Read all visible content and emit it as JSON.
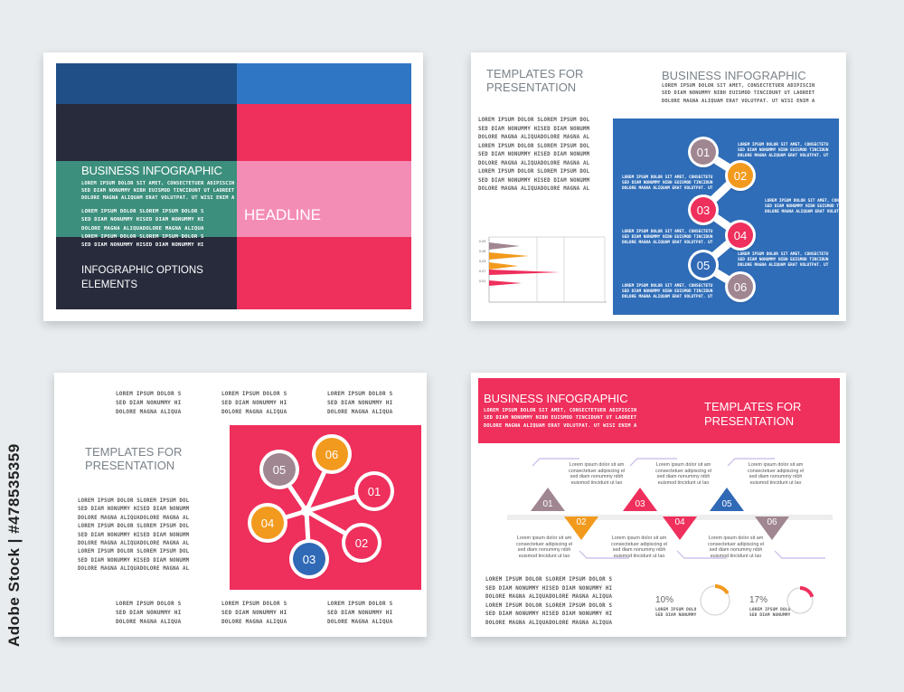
{
  "watermark": "Adobe Stock | #478535359",
  "colors": {
    "navy": "#1f4f86",
    "blue": "#2f77c4",
    "dark": "#272b3c",
    "teal": "#3d8f7d",
    "red": "#ef2f5c",
    "pink": "#f48db6",
    "orange": "#f29a1d",
    "mauve": "#a08691",
    "blueNode": "#3069b6"
  },
  "slide1": {
    "title": "BUSINESS INFOGRAPHIC",
    "body": "LOREM IPSUM DOLOR SIT AMET, CONSECTETUER ADIPISCIN\nSED DIAM NONUMMY NIBH EUISMOD TINCIDUNT UT LAOREET\nDOLORE MAGNA ALIQUAM ERAT VOLUTPAT. UT WISI ENIM A",
    "col": "LOREM IPSUM DOLOR SLOREM IPSUM DOLOR S\nSED DIAM NONUMMY HISED DIAM NONUMMY HI\nDOLORE MAGNA ALIQUADOLORE MAGNA ALIQUA\nLOREM IPSUM DOLOR SLOREM IPSUM DOLOR S\nSED DIAM NONUMMY HISED DIAM NONUMMY HI",
    "headline": "HEADLINE",
    "options": "INFOGRAPHIC OPTIONS\nELEMENTS"
  },
  "slide2": {
    "left_title": "TEMPLATES FOR\nPRESENTATION",
    "right_title": "BUSINESS INFOGRAPHIC",
    "right_body": "LOREM IPSUM DOLOR SIT AMET, CONSECTETUER ADIPISCIN\nSED DIAM NONUMMY NIBH EUISMOD TINCIDUNT UT LAOREET\nDOLORE MAGNA ALIQUAM ERAT VOLUTPAT. UT WISI ENIM A",
    "left_col": "LOREM IPSUM DOLOR SLOREM IPSUM DOL\nSED DIAM NONUMMY HISED DIAM NONUMM\nDOLORE MAGNA ALIQUADOLORE MAGNA AL\nLOREM IPSUM DOLOR SLOREM IPSUM DOL\nSED DIAM NONUMMY HISED DIAM NONUMM\nDOLORE MAGNA ALIQUADOLORE MAGNA AL\nLOREM IPSUM DOLOR SLOREM IPSUM DOL\nSED DIAM NONUMMY HISED DIAM NONUMM\nDOLORE MAGNA ALIQUADOLORE MAGNA AL",
    "nodes": [
      "01",
      "02",
      "03",
      "04",
      "05",
      "06"
    ],
    "side_text": "LOREM IPSUM DOLOR SIT AMET, CONSECTETU\nSED DIAM NONUMMY NIBH EUISMOD TINCIDUN\nDOLORE MAGNA ALIQUAM ERAT VOLUTPAT. UT",
    "mini_chart_ticks": [
      "0.09",
      "0.08",
      "0.03",
      "0.07",
      "0.01"
    ]
  },
  "slide3": {
    "title": "TEMPLATES FOR\nPRESENTATION",
    "top_col": "LOREM IPSUM DOLOR S\nSED DIAM NONUMMY HI\nDOLORE MAGNA ALIQUA",
    "left_col": "LOREM IPSUM DOLOR SLOREM IPSUM DOL\nSED DIAM NONUMMY HISED DIAM NONUMM\nDOLORE MAGNA ALIQUADOLORE MAGNA AL\nLOREM IPSUM DOLOR SLOREM IPSUM DOL\nSED DIAM NONUMMY HISED DIAM NONUMM\nDOLORE MAGNA ALIQUADOLORE MAGNA AL\nLOREM IPSUM DOLOR SLOREM IPSUM DOL\nSED DIAM NONUMMY HISED DIAM NONUMM\nDOLORE MAGNA ALIQUADOLORE MAGNA AL",
    "nodes": [
      "01",
      "02",
      "03",
      "04",
      "05",
      "06"
    ]
  },
  "slide4": {
    "title": "BUSINESS INFOGRAPHIC",
    "body": "LOREM IPSUM DOLOR SIT AMET, CONSECTETUER ADIPISCIN\nSED DIAM NONUMMY NIBH EUISMOD TINCIDUNT UT LAOREET\nDOLORE MAGNA ALIQUAM ERAT VOLUTPAT. UT WISI ENIM A",
    "right_title": "TEMPLATES FOR\nPRESENTATION",
    "steps": [
      "01",
      "02",
      "03",
      "04",
      "05",
      "06"
    ],
    "step_text": "Lorem ipsum dolor sit am\nconsectetuer adipiscing el\nsed diam nonummy nibh\neuismod tincidunt ut lao",
    "bottom_col": "LOREM IPSUM DOLOR SLOREM IPSUM DOLOR S\nSED DIAM NONUMMY HISED DIAM NONUMMY HI\nDOLORE MAGNA ALIQUADOLORE MAGNA ALIQUA\nLOREM IPSUM DOLOR SLOREM IPSUM DOLOR S\nSED DIAM NONUMMY HISED DIAM NONUMMY HI\nDOLORE MAGNA ALIQUADOLORE MAGNA ALIQUA",
    "stat1": "10%",
    "stat1_text": "LOREM IPSUM DOLO\nSED DIAM NONUMMY",
    "stat2": "17%",
    "stat2_text": "LOREM IPSUM DOLO\nSED DIAM NONUMMY"
  }
}
